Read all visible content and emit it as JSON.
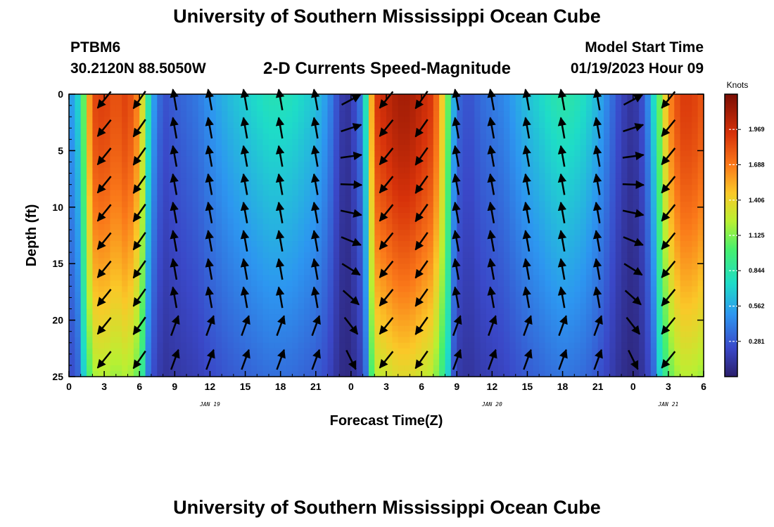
{
  "header": {
    "title": "University of Southern Mississippi Ocean Cube",
    "station": "PTBM6",
    "coords": "30.2120N  88.5050W",
    "subtitle": "2-D Currents Speed-Magnitude",
    "start_label": "Model Start Time",
    "start_value": "01/19/2023 Hour 09"
  },
  "footer": {
    "title": "University of Southern Mississippi Ocean Cube"
  },
  "colors": {
    "low": "#2b1f6b",
    "mid": "#3fd35b",
    "high": "#7a0d04",
    "arrow": "#000000"
  },
  "chart_data": {
    "type": "heatmap",
    "title": "2-D Currents Speed-Magnitude",
    "xlabel": "Forecast Time(Z)",
    "ylabel": "Depth (ft)",
    "x_tick_labels": [
      "0",
      "3",
      "6",
      "9",
      "12",
      "15",
      "18",
      "21",
      "0",
      "3",
      "6",
      "9",
      "12",
      "15",
      "18",
      "21",
      "0",
      "3",
      "6"
    ],
    "x_range_hours": [
      0,
      54
    ],
    "date_labels": [
      {
        "label": "JAN 19",
        "hour": 12
      },
      {
        "label": "JAN 20",
        "hour": 36
      },
      {
        "label": "JAN 21",
        "hour": 51
      }
    ],
    "y_ticks": [
      0,
      5,
      10,
      15,
      20,
      25
    ],
    "y_range": [
      0,
      25
    ],
    "y_inverted": true,
    "colorbar": {
      "units": "Knots",
      "ticks": [
        0.281,
        0.562,
        0.844,
        1.125,
        1.406,
        1.688,
        1.969
      ],
      "range": [
        0,
        2.25
      ]
    },
    "speed_profile_by_hour": [
      [
        0,
        0.45
      ],
      [
        1,
        0.8
      ],
      [
        2,
        1.85
      ],
      [
        3,
        1.9
      ],
      [
        4,
        1.8
      ],
      [
        5,
        1.9
      ],
      [
        6,
        1.6
      ],
      [
        7,
        0.6
      ],
      [
        8,
        0.25
      ],
      [
        9,
        0.3
      ],
      [
        10,
        0.35
      ],
      [
        11,
        0.4
      ],
      [
        12,
        0.5
      ],
      [
        13,
        0.58
      ],
      [
        14,
        0.65
      ],
      [
        15,
        0.7
      ],
      [
        16,
        0.75
      ],
      [
        17,
        0.8
      ],
      [
        18,
        0.8
      ],
      [
        19,
        0.78
      ],
      [
        20,
        0.72
      ],
      [
        21,
        0.65
      ],
      [
        22,
        0.5
      ],
      [
        23,
        0.2
      ],
      [
        23.5,
        0.1
      ],
      [
        24,
        0.15
      ],
      [
        25,
        0.45
      ],
      [
        26,
        1.9
      ],
      [
        27,
        2.0
      ],
      [
        28,
        2.1
      ],
      [
        29,
        2.1
      ],
      [
        30,
        2.0
      ],
      [
        31,
        1.9
      ],
      [
        32,
        1.3
      ],
      [
        33,
        0.35
      ],
      [
        34,
        0.25
      ],
      [
        35,
        0.35
      ],
      [
        36,
        0.4
      ],
      [
        37,
        0.45
      ],
      [
        38,
        0.55
      ],
      [
        39,
        0.65
      ],
      [
        40,
        0.72
      ],
      [
        41,
        0.8
      ],
      [
        42,
        0.85
      ],
      [
        43,
        0.82
      ],
      [
        44,
        0.75
      ],
      [
        45,
        0.6
      ],
      [
        46,
        0.4
      ],
      [
        47,
        0.2
      ],
      [
        48,
        0.1
      ],
      [
        49,
        0.3
      ],
      [
        50,
        0.9
      ],
      [
        51,
        1.6
      ],
      [
        52,
        1.9
      ],
      [
        53,
        1.9
      ],
      [
        54,
        1.8
      ]
    ],
    "vectors_note_directions": "arrows point southwest during high-speed periods (hours 1-7, 26-32, 49-54) and north-northwest during moderate periods (hours 9-22, 35-45)"
  }
}
